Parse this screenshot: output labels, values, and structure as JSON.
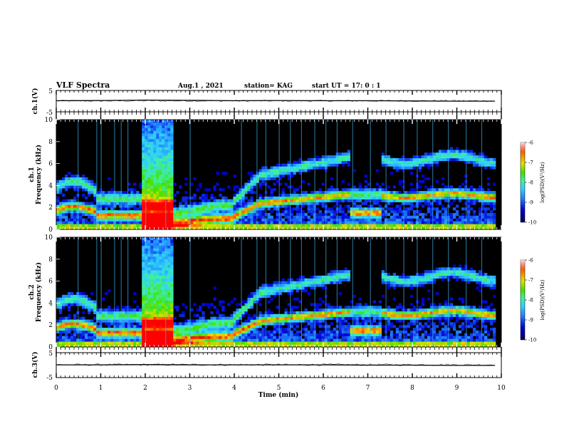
{
  "header": {
    "title": "VLF Spectra",
    "date": "Aug.1 , 2021",
    "station": "station= KAG",
    "start_ut": "start UT = 17: 0 : 1"
  },
  "colors": {
    "background": "#000000",
    "spectrogram_cmap": [
      "#000055",
      "#0000d0",
      "#2080ff",
      "#30d0ff",
      "#40f0a0",
      "#40e000",
      "#e0e000",
      "#ff7000",
      "#ff0000"
    ]
  },
  "chart_data": [
    {
      "id": "ch1-wave",
      "type": "line",
      "ylabel": "ch.1(V)",
      "ylim": [
        -5,
        5
      ],
      "y_ticks": [
        "5",
        "-5"
      ],
      "xlim": [
        0,
        10
      ],
      "x": [
        0,
        1,
        2,
        3,
        4,
        5,
        6,
        7,
        8,
        9,
        9.85
      ],
      "values": [
        0.2,
        0.3,
        0.5,
        0.4,
        0.2,
        0.3,
        0.2,
        0.2,
        0.1,
        0.0,
        0.0
      ]
    },
    {
      "id": "ch1-spec",
      "type": "heatmap",
      "ylabel": "ch.1\nFrequency (kHz)",
      "ylim": [
        0,
        10
      ],
      "y_ticks": [
        "0",
        "2",
        "4",
        "6",
        "8",
        "10"
      ],
      "xlim": [
        0,
        10
      ],
      "colorbar_label": "log(PSD)(V²/Hz)",
      "colorbar_ticks": [
        "-6",
        "-7",
        "-8",
        "-9",
        "-10"
      ],
      "colorbar_range": [
        -10,
        -6
      ]
    },
    {
      "id": "ch2-spec",
      "type": "heatmap",
      "ylabel": "ch.2\nFrequency (kHz)",
      "ylim": [
        0,
        10
      ],
      "y_ticks": [
        "0",
        "2",
        "4",
        "6",
        "8",
        "10"
      ],
      "xlim": [
        0,
        10
      ],
      "colorbar_label": "log(PSD)(V²/Hz)",
      "colorbar_ticks": [
        "-6",
        "-7",
        "-8",
        "-9",
        "-10"
      ],
      "colorbar_range": [
        -10,
        -6
      ]
    },
    {
      "id": "ch3-wave",
      "type": "line",
      "ylabel": "ch.3(V)",
      "ylim": [
        -5,
        5
      ],
      "y_ticks": [
        "5",
        "-5"
      ],
      "xlim": [
        0,
        10
      ],
      "x": [
        0,
        1,
        2,
        3,
        4,
        5,
        6,
        7,
        8,
        9,
        9.85
      ],
      "values": [
        0.1,
        0.1,
        0.2,
        0.1,
        0.1,
        0.1,
        0.1,
        0.0,
        0.0,
        -0.1,
        -0.1
      ]
    }
  ],
  "x_axis": {
    "label": "Time (min)",
    "ticks": [
      "0",
      "1",
      "2",
      "3",
      "4",
      "5",
      "6",
      "7",
      "8",
      "9",
      "10"
    ]
  }
}
